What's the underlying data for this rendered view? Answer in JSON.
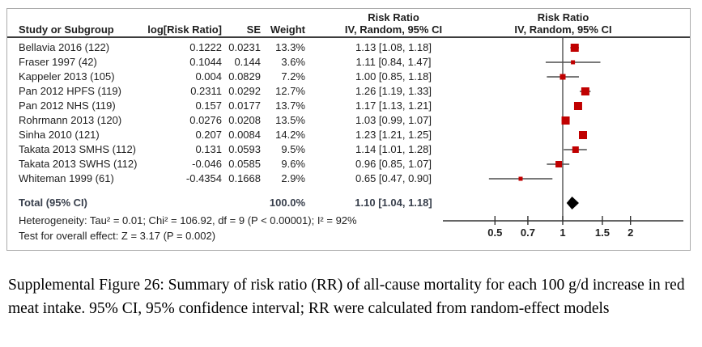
{
  "figure": {
    "header": {
      "ci_group_title": "Risk Ratio",
      "plot_group_title": "Risk Ratio",
      "study_col": "Study or Subgroup",
      "log_rr_col": "log[Risk Ratio]",
      "se_col": "SE",
      "weight_col": "Weight",
      "ci_col": "IV, Random, 95% CI",
      "plot_col": "IV, Random, 95% CI"
    }
  },
  "chart_data": {
    "type": "scatter",
    "subtype": "forest-plot",
    "x_scale": "log10",
    "axis_ticks": [
      0.5,
      0.7,
      1,
      1.5,
      2
    ],
    "axis_range": [
      0.35,
      3.4
    ],
    "marker_color": "#c00000",
    "ci_line_color": "#4d4d4d",
    "diamond_color": "#000000",
    "studies": [
      {
        "label": "Bellavia 2016 (122)",
        "log_rr": "0.1222",
        "se": "0.0231",
        "weight": "13.3%",
        "weight_pct": 13.3,
        "rr": 1.13,
        "ci_low": 1.08,
        "ci_high": 1.18,
        "ci_text": "1.13 [1.08, 1.18]"
      },
      {
        "label": "Fraser 1997 (42)",
        "log_rr": "0.1044",
        "se": "0.144",
        "weight": "3.6%",
        "weight_pct": 3.6,
        "rr": 1.11,
        "ci_low": 0.84,
        "ci_high": 1.47,
        "ci_text": "1.11 [0.84, 1.47]"
      },
      {
        "label": "Kappeler 2013 (105)",
        "log_rr": "0.004",
        "se": "0.0829",
        "weight": "7.2%",
        "weight_pct": 7.2,
        "rr": 1.0,
        "ci_low": 0.85,
        "ci_high": 1.18,
        "ci_text": "1.00 [0.85, 1.18]"
      },
      {
        "label": "Pan 2012 HPFS (119)",
        "log_rr": "0.2311",
        "se": "0.0292",
        "weight": "12.7%",
        "weight_pct": 12.7,
        "rr": 1.26,
        "ci_low": 1.19,
        "ci_high": 1.33,
        "ci_text": "1.26 [1.19, 1.33]"
      },
      {
        "label": "Pan 2012 NHS (119)",
        "log_rr": "0.157",
        "se": "0.0177",
        "weight": "13.7%",
        "weight_pct": 13.7,
        "rr": 1.17,
        "ci_low": 1.13,
        "ci_high": 1.21,
        "ci_text": "1.17 [1.13, 1.21]"
      },
      {
        "label": "Rohrmann 2013 (120)",
        "log_rr": "0.0276",
        "se": "0.0208",
        "weight": "13.5%",
        "weight_pct": 13.5,
        "rr": 1.03,
        "ci_low": 0.99,
        "ci_high": 1.07,
        "ci_text": "1.03 [0.99, 1.07]"
      },
      {
        "label": "Sinha 2010 (121)",
        "log_rr": "0.207",
        "se": "0.0084",
        "weight": "14.2%",
        "weight_pct": 14.2,
        "rr": 1.23,
        "ci_low": 1.21,
        "ci_high": 1.25,
        "ci_text": "1.23 [1.21, 1.25]"
      },
      {
        "label": "Takata 2013 SMHS (112)",
        "log_rr": "0.131",
        "se": "0.0593",
        "weight": "9.5%",
        "weight_pct": 9.5,
        "rr": 1.14,
        "ci_low": 1.01,
        "ci_high": 1.28,
        "ci_text": "1.14 [1.01, 1.28]"
      },
      {
        "label": "Takata 2013 SWHS (112)",
        "log_rr": "-0.046",
        "se": "0.0585",
        "weight": "9.6%",
        "weight_pct": 9.6,
        "rr": 0.96,
        "ci_low": 0.85,
        "ci_high": 1.07,
        "ci_text": "0.96 [0.85, 1.07]"
      },
      {
        "label": "Whiteman 1999 (61)",
        "log_rr": "-0.4354",
        "se": "0.1668",
        "weight": "2.9%",
        "weight_pct": 2.9,
        "rr": 0.65,
        "ci_low": 0.47,
        "ci_high": 0.9,
        "ci_text": "0.65 [0.47, 0.90]"
      }
    ],
    "total": {
      "label": "Total (95% CI)",
      "weight": "100.0%",
      "rr": 1.1,
      "ci_low": 1.04,
      "ci_high": 1.18,
      "ci_text": "1.10 [1.04, 1.18]"
    },
    "heterogeneity": "Heterogeneity: Tau² = 0.01; Chi² = 106.92, df = 9 (P < 0.00001); I² = 92%",
    "overall_effect": "Test for overall effect: Z = 3.17 (P = 0.002)"
  },
  "caption": {
    "text": "Supplemental Figure 26: Summary of risk ratio (RR) of all-cause mortality for each 100 g/d increase in red meat intake. 95% CI, 95% confidence interval; RR were calculated from random-effect models"
  }
}
